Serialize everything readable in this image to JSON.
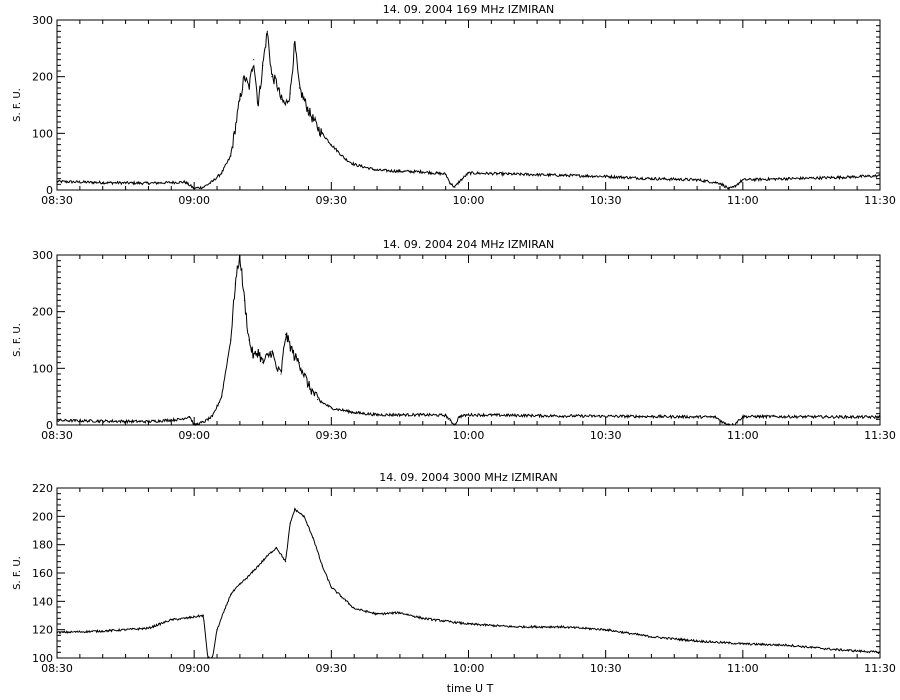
{
  "figure": {
    "xlabel": "time  U T"
  },
  "chart_data": [
    {
      "type": "line",
      "title": "14.  09.  2004    169 MHz    IZMIRAN",
      "ylabel": "S. F. U.",
      "xlim": [
        "08:30",
        "11:30"
      ],
      "ylim": [
        0,
        300
      ],
      "xticks": [
        "08:30",
        "09:00",
        "09:30",
        "10:00",
        "10:30",
        "11:00",
        "11:30"
      ],
      "yticks": [
        0,
        100,
        200,
        300
      ],
      "series": [
        {
          "x": [
            "08:30",
            "08:40",
            "08:50",
            "08:58",
            "09:00",
            "09:02",
            "09:04",
            "09:06",
            "09:08",
            "09:10",
            "09:11",
            "09:12",
            "09:13",
            "09:14",
            "09:15",
            "09:16",
            "09:17",
            "09:18",
            "09:19",
            "09:20",
            "09:21",
            "09:22",
            "09:23",
            "09:25",
            "09:27",
            "09:30",
            "09:33",
            "09:35",
            "09:40",
            "09:45",
            "09:50",
            "09:55",
            "09:56",
            "09:57",
            "09:58",
            "10:00",
            "10:10",
            "10:20",
            "10:30",
            "10:40",
            "10:50",
            "10:55",
            "10:57",
            "10:58",
            "11:00",
            "11:10",
            "11:20",
            "11:30"
          ],
          "y": [
            15,
            13,
            12,
            14,
            3,
            5,
            15,
            30,
            60,
            160,
            200,
            180,
            230,
            150,
            220,
            280,
            200,
            190,
            160,
            150,
            170,
            260,
            180,
            140,
            110,
            80,
            55,
            45,
            35,
            33,
            32,
            28,
            12,
            5,
            15,
            30,
            28,
            26,
            24,
            20,
            18,
            12,
            2,
            5,
            18,
            20,
            22,
            25
          ]
        }
      ]
    },
    {
      "type": "line",
      "title": "14.  09.  2004    204 MHz    IZMIRAN",
      "ylabel": "S. F. U.",
      "xlim": [
        "08:30",
        "11:30"
      ],
      "ylim": [
        0,
        300
      ],
      "xticks": [
        "08:30",
        "09:00",
        "09:30",
        "10:00",
        "10:30",
        "11:00",
        "11:30"
      ],
      "yticks": [
        0,
        100,
        200,
        300
      ],
      "series": [
        {
          "x": [
            "08:30",
            "08:40",
            "08:50",
            "08:57",
            "08:59",
            "09:00",
            "09:02",
            "09:04",
            "09:06",
            "09:08",
            "09:09",
            "09:10",
            "09:11",
            "09:12",
            "09:13",
            "09:14",
            "09:15",
            "09:17",
            "09:18",
            "09:19",
            "09:20",
            "09:21",
            "09:22",
            "09:23",
            "09:25",
            "09:27",
            "09:30",
            "09:35",
            "09:40",
            "09:50",
            "09:55",
            "09:56",
            "09:57",
            "09:58",
            "10:00",
            "10:20",
            "10:40",
            "10:54",
            "10:56",
            "10:58",
            "11:00",
            "11:30"
          ],
          "y": [
            8,
            7,
            6,
            10,
            15,
            0,
            5,
            15,
            50,
            150,
            250,
            300,
            220,
            150,
            120,
            130,
            110,
            130,
            100,
            90,
            160,
            140,
            120,
            110,
            70,
            45,
            30,
            22,
            18,
            18,
            17,
            8,
            0,
            15,
            18,
            16,
            15,
            14,
            3,
            0,
            15,
            14
          ]
        }
      ]
    },
    {
      "type": "line",
      "title": "14.  09.  2004    3000 MHz    IZMIRAN",
      "ylabel": "S. F. U.",
      "xlim": [
        "08:30",
        "11:30"
      ],
      "ylim": [
        100,
        220
      ],
      "xticks": [
        "08:30",
        "09:00",
        "09:30",
        "10:00",
        "10:30",
        "11:00",
        "11:30"
      ],
      "yticks": [
        100,
        120,
        140,
        160,
        180,
        200,
        220
      ],
      "series": [
        {
          "x": [
            "08:30",
            "08:40",
            "08:50",
            "08:55",
            "08:58",
            "09:02",
            "09:03",
            "09:04",
            "09:05",
            "09:08",
            "09:10",
            "09:12",
            "09:14",
            "09:16",
            "09:18",
            "09:20",
            "09:21",
            "09:22",
            "09:24",
            "09:26",
            "09:28",
            "09:30",
            "09:35",
            "09:40",
            "09:45",
            "09:50",
            "10:00",
            "10:10",
            "10:20",
            "10:30",
            "10:40",
            "10:50",
            "11:00",
            "11:10",
            "11:20",
            "11:30"
          ],
          "y": [
            118,
            119,
            121,
            127,
            128,
            130,
            100,
            100,
            120,
            145,
            152,
            158,
            165,
            172,
            178,
            168,
            195,
            205,
            200,
            185,
            165,
            150,
            135,
            131,
            132,
            128,
            124,
            122,
            122,
            120,
            115,
            112,
            110,
            109,
            106,
            104
          ]
        }
      ]
    }
  ]
}
